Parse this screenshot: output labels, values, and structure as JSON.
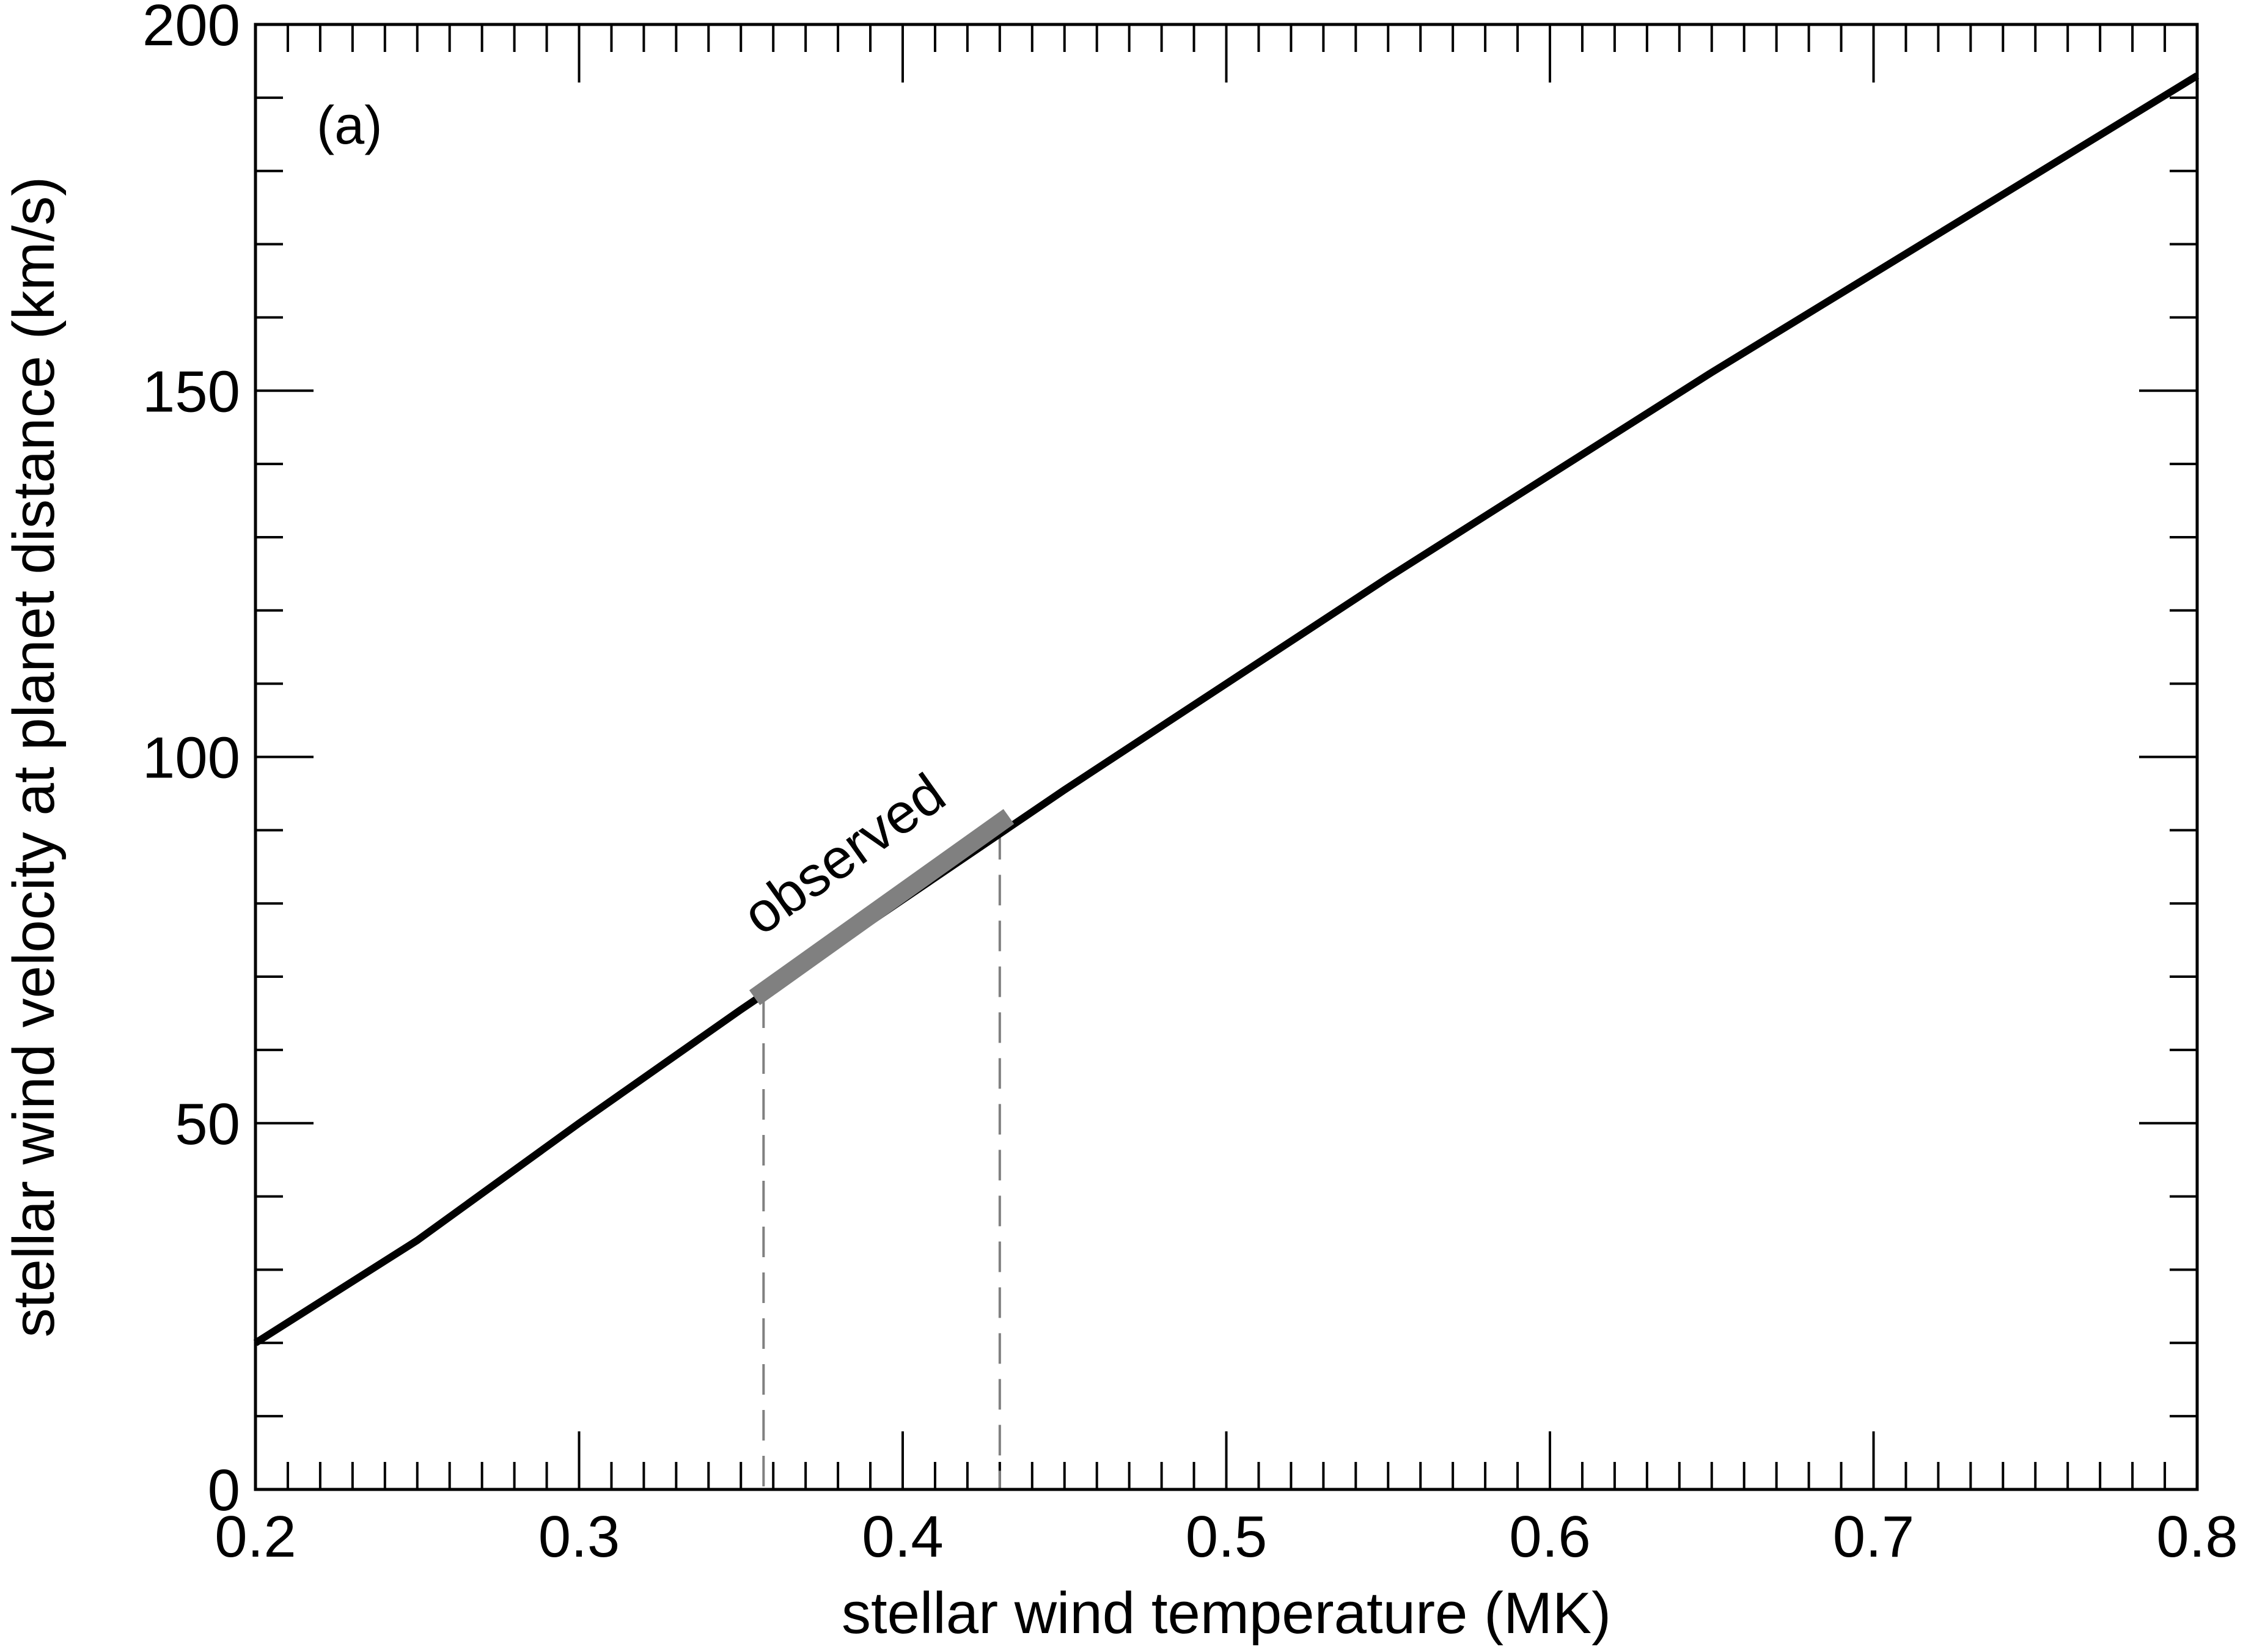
{
  "chart_data": {
    "type": "line",
    "panel_label": "(a)",
    "xlabel": "stellar wind temperature (MK)",
    "ylabel": "stellar wind velocity at planet distance (km/s)",
    "xlim": [
      0.2,
      0.8
    ],
    "ylim": [
      0,
      200
    ],
    "x_ticks": [
      "0.2",
      "0.3",
      "0.4",
      "0.5",
      "0.6",
      "0.7",
      "0.8"
    ],
    "x_tick_values": [
      0.2,
      0.3,
      0.4,
      0.5,
      0.6,
      0.7,
      0.8
    ],
    "x_minor_step": 0.01,
    "y_ticks": [
      "0",
      "50",
      "100",
      "150",
      "200"
    ],
    "y_tick_values": [
      0,
      50,
      100,
      150,
      200
    ],
    "y_minor_step": 10,
    "grid": false,
    "series": [
      {
        "x": [
          0.2,
          0.25,
          0.3,
          0.35,
          0.4,
          0.45,
          0.5,
          0.55,
          0.6,
          0.65,
          0.7,
          0.75,
          0.8
        ],
        "y": [
          20,
          34,
          50,
          65.5,
          80.5,
          95.5,
          110,
          124.5,
          138.5,
          152.5,
          166,
          179.5,
          193
        ],
        "color": "#000000"
      }
    ],
    "highlight": {
      "label": "observed",
      "x_range": [
        0.357,
        0.43
      ],
      "y_range": [
        68,
        91
      ],
      "color": "#808080"
    }
  }
}
